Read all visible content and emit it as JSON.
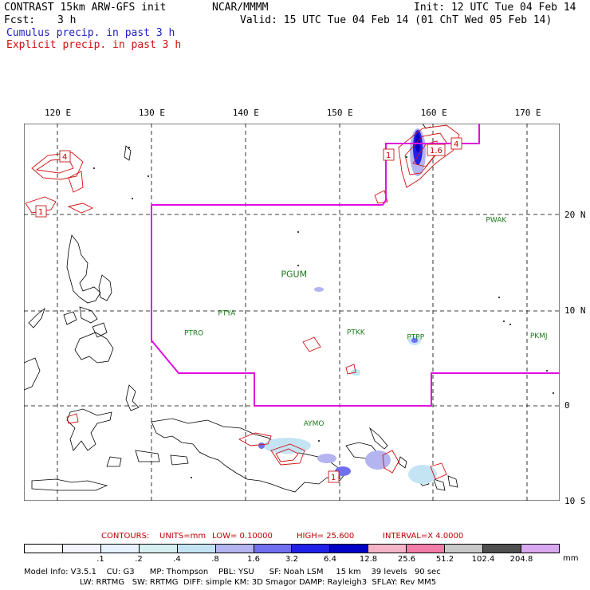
{
  "header": {
    "title": "CONTRAST 15km ARW-GFS init",
    "org": "NCAR/MMMM",
    "init": "Init: 12 UTC Tue 04 Feb 14",
    "fcst_label": "Fcst:",
    "fcst_value": "3 h",
    "valid": "Valid: 15 UTC Tue 04 Feb 14 (01 ChT Wed 05 Feb 14)",
    "line3": "Cumulus precip. in past 3 h",
    "line4": "Explicit precip. in past 3 h"
  },
  "axes": {
    "lon_labels": [
      "120 E",
      "130 E",
      "140 E",
      "150 E",
      "160 E",
      "170 E"
    ],
    "lat_labels": [
      "20 N",
      "10 N",
      "0",
      "10 S"
    ]
  },
  "stations": [
    {
      "id": "PWAK",
      "lon": 166.6,
      "lat": 19.3
    },
    {
      "id": "PGUM",
      "lon": 144.8,
      "lat": 13.5
    },
    {
      "id": "PTYA",
      "lon": 138.1,
      "lat": 9.5
    },
    {
      "id": "PTRO",
      "lon": 134.5,
      "lat": 7.4
    },
    {
      "id": "PTKK",
      "lon": 151.8,
      "lat": 7.5
    },
    {
      "id": "PTPP",
      "lon": 158.2,
      "lat": 7.0
    },
    {
      "id": "PKMJ",
      "lon": 171.3,
      "lat": 7.1
    },
    {
      "id": "AYMO",
      "lon": 147.2,
      "lat": -2.1
    }
  ],
  "contour_labels": [
    "4",
    "1",
    "1",
    "1.6",
    "4",
    "1"
  ],
  "contours": {
    "label": "CONTOURS:",
    "units": "UNITS=mm",
    "low": "LOW= 0.10000",
    "high": "HIGH= 25.600",
    "interval": "INTERVAL=X 4.0000"
  },
  "colorbar": {
    "ticks": [
      ".1",
      ".2",
      ".4",
      ".8",
      "1.6",
      "3.2",
      "6.4",
      "12.8",
      "25.6",
      "51.2",
      "102.4",
      "204.8"
    ],
    "unit": "mm",
    "colors": [
      "#ffffff",
      "#f4f4ff",
      "#e6f2ff",
      "#d6f0f2",
      "#c4e4f4",
      "#b4b4f0",
      "#7070ee",
      "#2020e8",
      "#0000c8",
      "#f4b4c8",
      "#f07ca8",
      "#c8c8c8",
      "#505050",
      "#d8a8f0"
    ]
  },
  "model_info": {
    "line1": "Model Info: V3.5.1    CU: G3      MP: Thompson    PBL: YSU      SF: Noah LSM     15 km    39 levels   90 sec",
    "line2": "LW: RRTMG   SW: RRTMG  DIFF: simple KM: 3D Smagor DAMP: Rayleigh3  SFLAY: Rev MM5"
  }
}
